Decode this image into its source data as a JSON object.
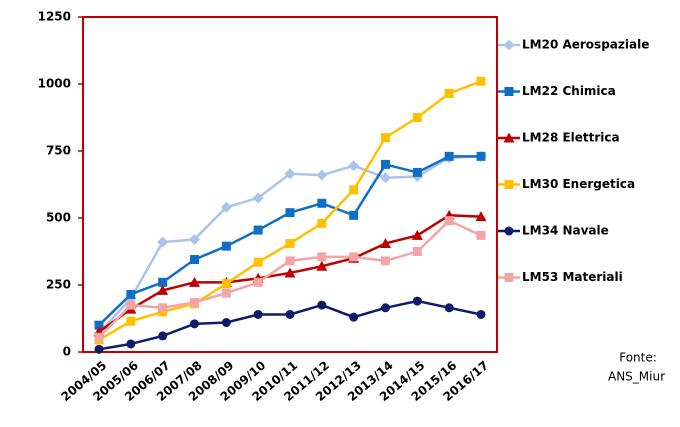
{
  "chart_data": {
    "type": "line",
    "categories": [
      "2004/05",
      "2005/06",
      "2006/07",
      "2007/08",
      "2008/09",
      "2009/10",
      "2010/11",
      "2011/12",
      "2012/13",
      "2013/14",
      "2014/15",
      "2015/16",
      "2016/17"
    ],
    "series": [
      {
        "name": "LM20 Aerospaziale",
        "color": "#a9c4eb",
        "marker": "diamond",
        "values": [
          70,
          200,
          410,
          420,
          540,
          575,
          665,
          660,
          695,
          650,
          655,
          725,
          730
        ]
      },
      {
        "name": "LM22 Chimica",
        "color": "#0f6fc6",
        "marker": "square",
        "values": [
          100,
          215,
          260,
          345,
          395,
          455,
          520,
          555,
          510,
          700,
          670,
          730,
          730
        ]
      },
      {
        "name": "LM28 Elettrica",
        "color": "#c00000",
        "marker": "triangle",
        "values": [
          75,
          160,
          230,
          260,
          260,
          275,
          295,
          320,
          350,
          405,
          435,
          510,
          505
        ]
      },
      {
        "name": "LM30 Energetica",
        "color": "#ffc000",
        "marker": "square",
        "values": [
          45,
          115,
          150,
          180,
          255,
          335,
          405,
          480,
          605,
          800,
          875,
          965,
          1010
        ]
      },
      {
        "name": "LM34 Navale",
        "color": "#0d1d6b",
        "marker": "circle",
        "values": [
          10,
          30,
          60,
          105,
          110,
          140,
          140,
          175,
          130,
          165,
          190,
          165,
          140
        ]
      },
      {
        "name": "LM53 Materiali",
        "color": "#f4a4a4",
        "marker": "square",
        "values": [
          55,
          175,
          165,
          185,
          220,
          260,
          340,
          355,
          355,
          340,
          375,
          490,
          435
        ]
      }
    ],
    "ylim": [
      0,
      1250
    ],
    "yticks": [
      0,
      250,
      500,
      750,
      1000,
      1250
    ],
    "grid": false,
    "legend": "right",
    "source": [
      "Fonte:",
      "ANS_Miur"
    ]
  }
}
